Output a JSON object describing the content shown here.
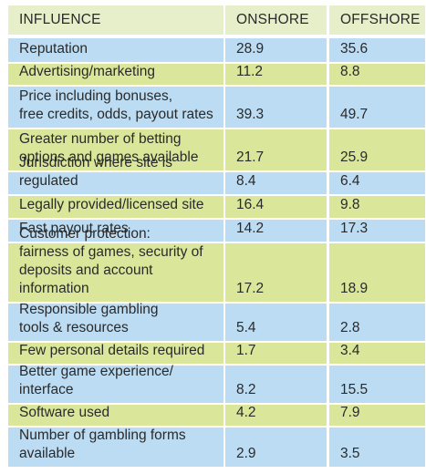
{
  "headers": {
    "influence": "INFLUENCE",
    "onshore": "ONSHORE",
    "offshore": "OFFSHORE"
  },
  "rows": [
    {
      "label": "Reputation",
      "onshore": "28.9",
      "offshore": "35.6"
    },
    {
      "label": "Advertising/marketing",
      "onshore": "11.2",
      "offshore": "8.8"
    },
    {
      "label": "Price including bonuses,\nfree credits, odds, payout rates",
      "onshore": "39.3",
      "offshore": "49.7"
    },
    {
      "label": "Greater number of betting\noptions and games available",
      "onshore": "21.7",
      "offshore": "25.9"
    },
    {
      "label": "Jurisdiction where site is regulated",
      "onshore": "8.4",
      "offshore": "6.4"
    },
    {
      "label": "Legally provided/licensed site",
      "onshore": "16.4",
      "offshore": "9.8"
    },
    {
      "label": "Fast payout rates",
      "onshore": "14.2",
      "offshore": "17.3"
    },
    {
      "label": "Customer protection:\nfairness of games, security of\ndeposits and account information",
      "onshore": "17.2",
      "offshore": "18.9"
    },
    {
      "label": "Responsible gambling\ntools & resources",
      "onshore": "5.4",
      "offshore": "2.8"
    },
    {
      "label": "Few personal details required",
      "onshore": "1.7",
      "offshore": "3.4"
    },
    {
      "label": "Better game experience/\ninterface",
      "onshore": "8.2",
      "offshore": "15.5"
    },
    {
      "label": "Software used",
      "onshore": "4.2",
      "offshore": "7.9"
    },
    {
      "label": "Number of gambling forms\navailable",
      "onshore": "2.9",
      "offshore": "3.5"
    }
  ],
  "colors": {
    "header": "#e6efc9",
    "blue": "#bcdcf3",
    "green": "#dae79b"
  }
}
